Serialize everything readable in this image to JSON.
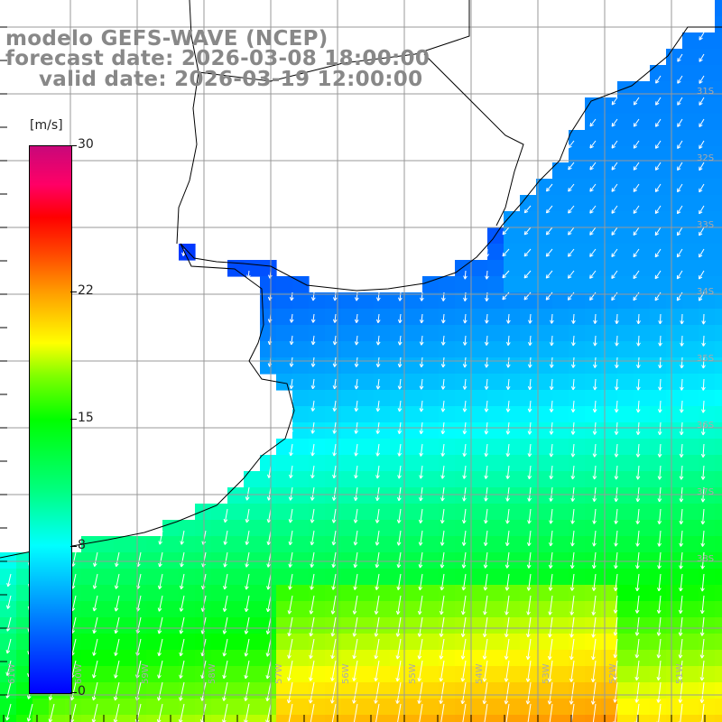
{
  "title": {
    "line1": "modelo GEFS-WAVE (NCEP)",
    "line2": "forecast date: 2026-03-08 18:00:00",
    "line3": "valid date: 2026-03-19 12:00:00"
  },
  "colorbar": {
    "unit": "[m/s]",
    "ticks": [
      "30",
      "22",
      "15",
      "8",
      "0"
    ],
    "tick_values": [
      30,
      22,
      15,
      8,
      0
    ],
    "min": 0,
    "max": 30
  },
  "map": {
    "lon_range": [
      -61,
      -50
    ],
    "lat_range": [
      -38.5,
      -30.5
    ],
    "lon_labels": [
      "61W",
      "60W",
      "59W",
      "58W",
      "57W",
      "56W",
      "55W",
      "54W",
      "53W",
      "52W",
      "51W",
      "50W"
    ],
    "lat_labels": [
      "31S",
      "32S",
      "33S",
      "34S",
      "35S",
      "36S",
      "37S",
      "38S"
    ],
    "grid": true,
    "field": "wind speed with wind direction arrows",
    "colors": {
      "land": "#ffffff",
      "coast": "#000000",
      "grid": "#999999",
      "arrow": "#ffffff",
      "title": "#888888"
    }
  }
}
